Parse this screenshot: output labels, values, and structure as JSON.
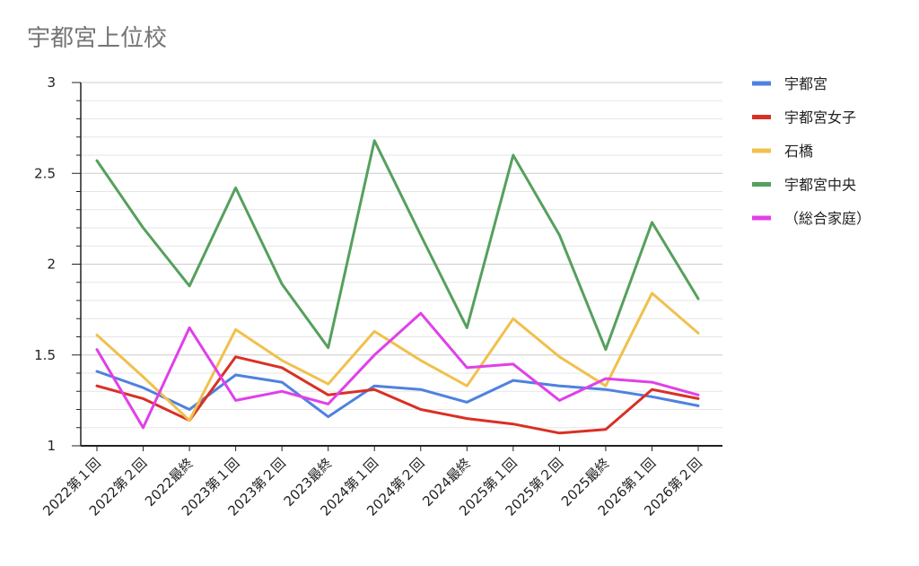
{
  "chart_data": {
    "type": "line",
    "title": "宇都宮上位校",
    "xlabel": "",
    "ylabel": "",
    "ylim": [
      1,
      3
    ],
    "y_ticks": [
      "1",
      "1.5",
      "2",
      "2.5",
      "3"
    ],
    "grid": true,
    "legend_position": "right",
    "categories": [
      "2022第１回",
      "2022第２回",
      "2022最終",
      "2023第１回",
      "2023第２回",
      "2023最終",
      "2024第１回",
      "2024第２回",
      "2024最終",
      "2025第１回",
      "2025第２回",
      "2025最終",
      "2026第１回",
      "2026第２回"
    ],
    "series": [
      {
        "name": "宇都宮",
        "color": "#4f81e0",
        "values": [
          1.41,
          1.32,
          1.2,
          1.39,
          1.35,
          1.16,
          1.33,
          1.31,
          1.24,
          1.36,
          1.33,
          1.31,
          1.27,
          1.22
        ]
      },
      {
        "name": "宇都宮女子",
        "color": "#d93025",
        "values": [
          1.33,
          1.26,
          1.14,
          1.49,
          1.43,
          1.28,
          1.31,
          1.2,
          1.15,
          1.12,
          1.07,
          1.09,
          1.31,
          1.26
        ]
      },
      {
        "name": "石橋",
        "color": "#f1c04c",
        "values": [
          1.61,
          1.38,
          1.14,
          1.64,
          1.47,
          1.34,
          1.63,
          1.47,
          1.33,
          1.7,
          1.49,
          1.33,
          1.84,
          1.62
        ]
      },
      {
        "name": "宇都宮中央",
        "color": "#55a05d",
        "values": [
          2.57,
          2.2,
          1.88,
          2.42,
          1.89,
          1.54,
          2.68,
          2.16,
          1.65,
          2.6,
          2.16,
          1.53,
          2.23,
          1.81
        ]
      },
      {
        "name": "（総合家庭）",
        "color": "#e040e8",
        "values": [
          1.53,
          1.1,
          1.65,
          1.25,
          1.3,
          1.23,
          1.5,
          1.73,
          1.43,
          1.45,
          1.25,
          1.37,
          1.35,
          1.28
        ]
      }
    ]
  }
}
